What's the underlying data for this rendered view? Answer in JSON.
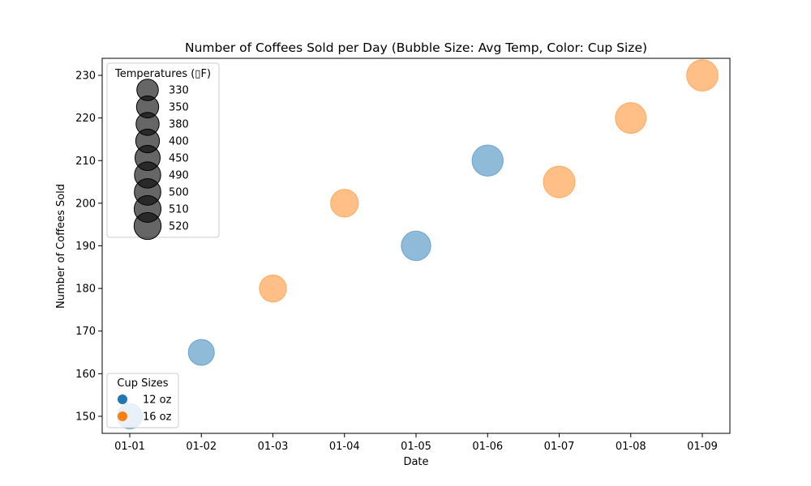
{
  "chart_data": {
    "type": "scatter",
    "title": "Number of Coffees Sold per Day (Bubble Size: Avg Temp, Color: Cup Size)",
    "xlabel": "Date",
    "ylabel": "Number of Coffees Sold",
    "x_tick_labels": [
      "01-01",
      "01-02",
      "01-03",
      "01-04",
      "01-05",
      "01-06",
      "01-07",
      "01-08",
      "01-09"
    ],
    "y_ticks": [
      150,
      160,
      170,
      180,
      190,
      200,
      210,
      220,
      230
    ],
    "ylim": [
      146,
      234
    ],
    "grid": false,
    "colors": {
      "12 oz": "#1f77b4",
      "16 oz": "#ff7f0e"
    },
    "points": [
      {
        "date": "01-01",
        "coffees_sold": 150,
        "avg_temp": 330,
        "cup_size": "12 oz"
      },
      {
        "date": "01-02",
        "coffees_sold": 165,
        "avg_temp": 350,
        "cup_size": "12 oz"
      },
      {
        "date": "01-03",
        "coffees_sold": 180,
        "avg_temp": 380,
        "cup_size": "16 oz"
      },
      {
        "date": "01-04",
        "coffees_sold": 200,
        "avg_temp": 400,
        "cup_size": "16 oz"
      },
      {
        "date": "01-05",
        "coffees_sold": 190,
        "avg_temp": 450,
        "cup_size": "12 oz"
      },
      {
        "date": "01-06",
        "coffees_sold": 210,
        "avg_temp": 500,
        "cup_size": "12 oz"
      },
      {
        "date": "01-07",
        "coffees_sold": 205,
        "avg_temp": 520,
        "cup_size": "16 oz"
      },
      {
        "date": "01-08",
        "coffees_sold": 220,
        "avg_temp": 490,
        "cup_size": "16 oz"
      },
      {
        "date": "01-09",
        "coffees_sold": 230,
        "avg_temp": 510,
        "cup_size": "16 oz"
      }
    ],
    "size_legend": {
      "title": "Temperatures (▯F)",
      "placement": "top-left",
      "entries": [
        330,
        350,
        380,
        400,
        450,
        490,
        500,
        510,
        520
      ]
    },
    "color_legend": {
      "title": "Cup Sizes",
      "placement": "bottom-left",
      "entries": [
        "12 oz",
        "16 oz"
      ]
    }
  }
}
